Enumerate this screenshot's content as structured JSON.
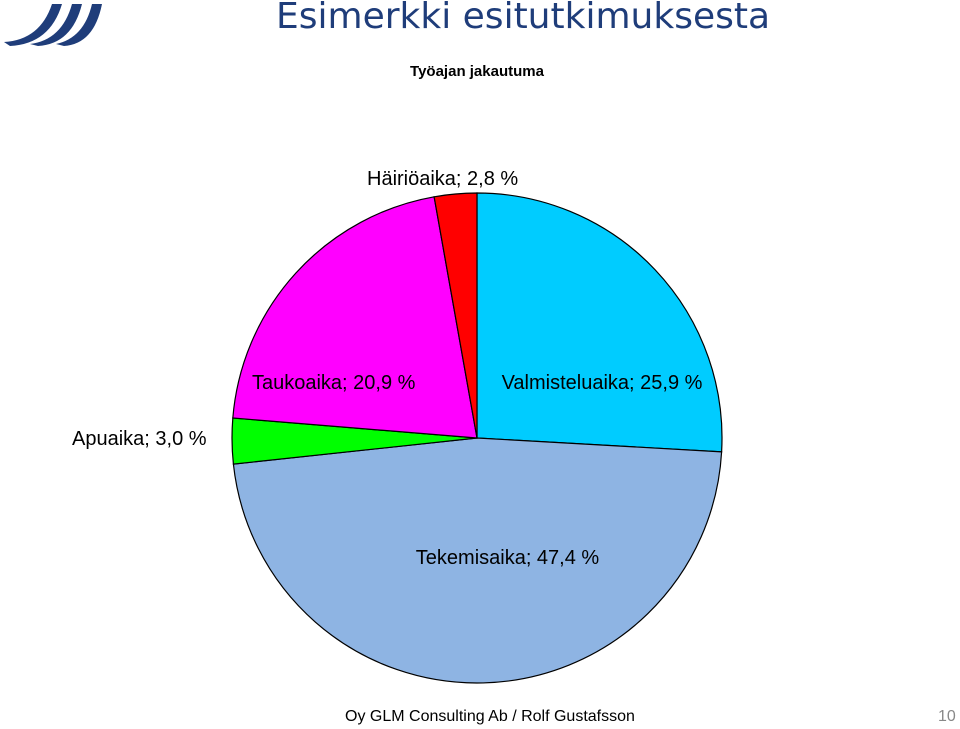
{
  "header": {
    "title": "Esimerkki esitutkimuksesta"
  },
  "chart_data": {
    "type": "pie",
    "title": "Työajan jakautuma",
    "values": [
      25.9,
      47.4,
      3.0,
      20.9,
      2.8
    ],
    "value_labels": [
      "Valmisteluaika; 25,9 %",
      "Tekemisaika; 47,4 %",
      "Apuaika; 3,0 %",
      "Taukoaika; 20,9 %",
      "Häiriöaika; 2,8 %"
    ],
    "colors": [
      "#00ccff",
      "#8eb4e3",
      "#00ff00",
      "#ff00ff",
      "#ff0000"
    ]
  },
  "footer": {
    "text": "Oy GLM Consulting Ab / Rolf Gustafsson",
    "page": "10"
  }
}
